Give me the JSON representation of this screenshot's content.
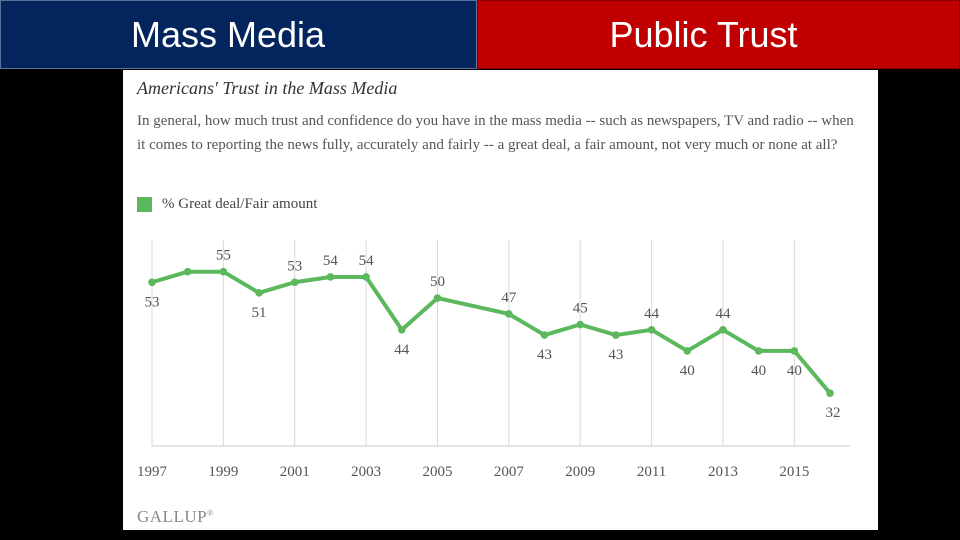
{
  "tabs": {
    "left": "Mass Media",
    "right": "Public Trust"
  },
  "brand": "GALLUP",
  "chart_data": {
    "type": "line",
    "title": "Americans' Trust in the Mass Media",
    "subtitle": "In general, how much trust and confidence do you have in the mass media -- such as newspapers, TV and radio -- when it comes to reporting the news fully, accurately and fairly -- a great deal, a fair amount, not very much or none at all?",
    "series": [
      {
        "name": "% Great deal/Fair amount",
        "color": "#5cb85c",
        "x": [
          1997,
          1998,
          1999,
          2000,
          2001,
          2002,
          2003,
          2004,
          2005,
          2006,
          2007,
          2008,
          2009,
          2010,
          2011,
          2012,
          2013,
          2014,
          2015,
          2016
        ],
        "values": [
          53,
          55,
          55,
          51,
          53,
          54,
          54,
          44,
          50,
          null,
          47,
          43,
          45,
          43,
          44,
          40,
          44,
          40,
          40,
          32
        ]
      }
    ],
    "labeled_points": [
      {
        "x": 1997,
        "label": "53"
      },
      {
        "x": 1999,
        "label": "55"
      },
      {
        "x": 2000,
        "label": "51"
      },
      {
        "x": 2001,
        "label": "53"
      },
      {
        "x": 2002,
        "label": "54"
      },
      {
        "x": 2003,
        "label": "54"
      },
      {
        "x": 2004,
        "label": "44"
      },
      {
        "x": 2005,
        "label": "50"
      },
      {
        "x": 2007,
        "label": "47"
      },
      {
        "x": 2008,
        "label": "43"
      },
      {
        "x": 2009,
        "label": "45"
      },
      {
        "x": 2010,
        "label": "43"
      },
      {
        "x": 2011,
        "label": "44"
      },
      {
        "x": 2012,
        "label": "40"
      },
      {
        "x": 2013,
        "label": "44"
      },
      {
        "x": 2014,
        "label": "40"
      },
      {
        "x": 2015,
        "label": "40"
      },
      {
        "x": 2016,
        "label": "32"
      }
    ],
    "x_ticks": [
      "1997",
      "1999",
      "2001",
      "2003",
      "2005",
      "2007",
      "2009",
      "2011",
      "2013",
      "2015"
    ],
    "xlim": [
      1997,
      2016
    ],
    "ylim": [
      22,
      61
    ],
    "legend_position": "top-left",
    "grid": "vertical"
  }
}
